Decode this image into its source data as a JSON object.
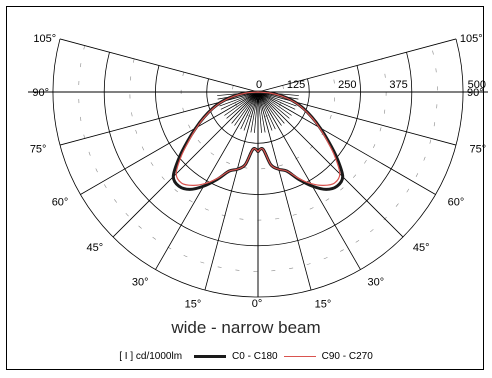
{
  "chart_data": {
    "type": "polar",
    "title": "",
    "subtitle": "wide - narrow beam",
    "unit_label": "[ I ] cd/1000lm",
    "radial_ticks": [
      "0",
      "125",
      "250",
      "375",
      "500"
    ],
    "radial_range": [
      0,
      500
    ],
    "angle_ticks_left": [
      "105°",
      "90°",
      "75°",
      "60°",
      "45°",
      "30°",
      "15°",
      "0°"
    ],
    "angle_ticks_right": [
      "105°",
      "90°",
      "75°",
      "60°",
      "45°",
      "30°",
      "15°"
    ],
    "angle_values": [
      0,
      15,
      30,
      45,
      60,
      75,
      90,
      105
    ],
    "grid": true,
    "legend_position": "bottom",
    "series": [
      {
        "name": "C0 - C180",
        "color": "#1a1a1a",
        "angles": [
          0,
          5,
          10,
          15,
          20,
          25,
          30,
          35,
          40,
          45,
          50,
          55,
          60,
          65,
          70,
          75,
          80,
          85,
          90
        ],
        "values": [
          145,
          140,
          180,
          195,
          205,
          235,
          265,
          290,
          300,
          292,
          252,
          210,
          175,
          145,
          118,
          92,
          62,
          30,
          0
        ]
      },
      {
        "name": "C90 - C270",
        "color": "#d9534f",
        "angles": [
          0,
          5,
          10,
          15,
          20,
          25,
          30,
          35,
          40,
          45,
          50,
          55,
          60,
          65,
          70,
          75,
          80,
          85,
          90
        ],
        "values": [
          145,
          140,
          180,
          195,
          205,
          232,
          258,
          278,
          290,
          282,
          245,
          205,
          172,
          143,
          116,
          90,
          60,
          30,
          0
        ]
      }
    ]
  }
}
